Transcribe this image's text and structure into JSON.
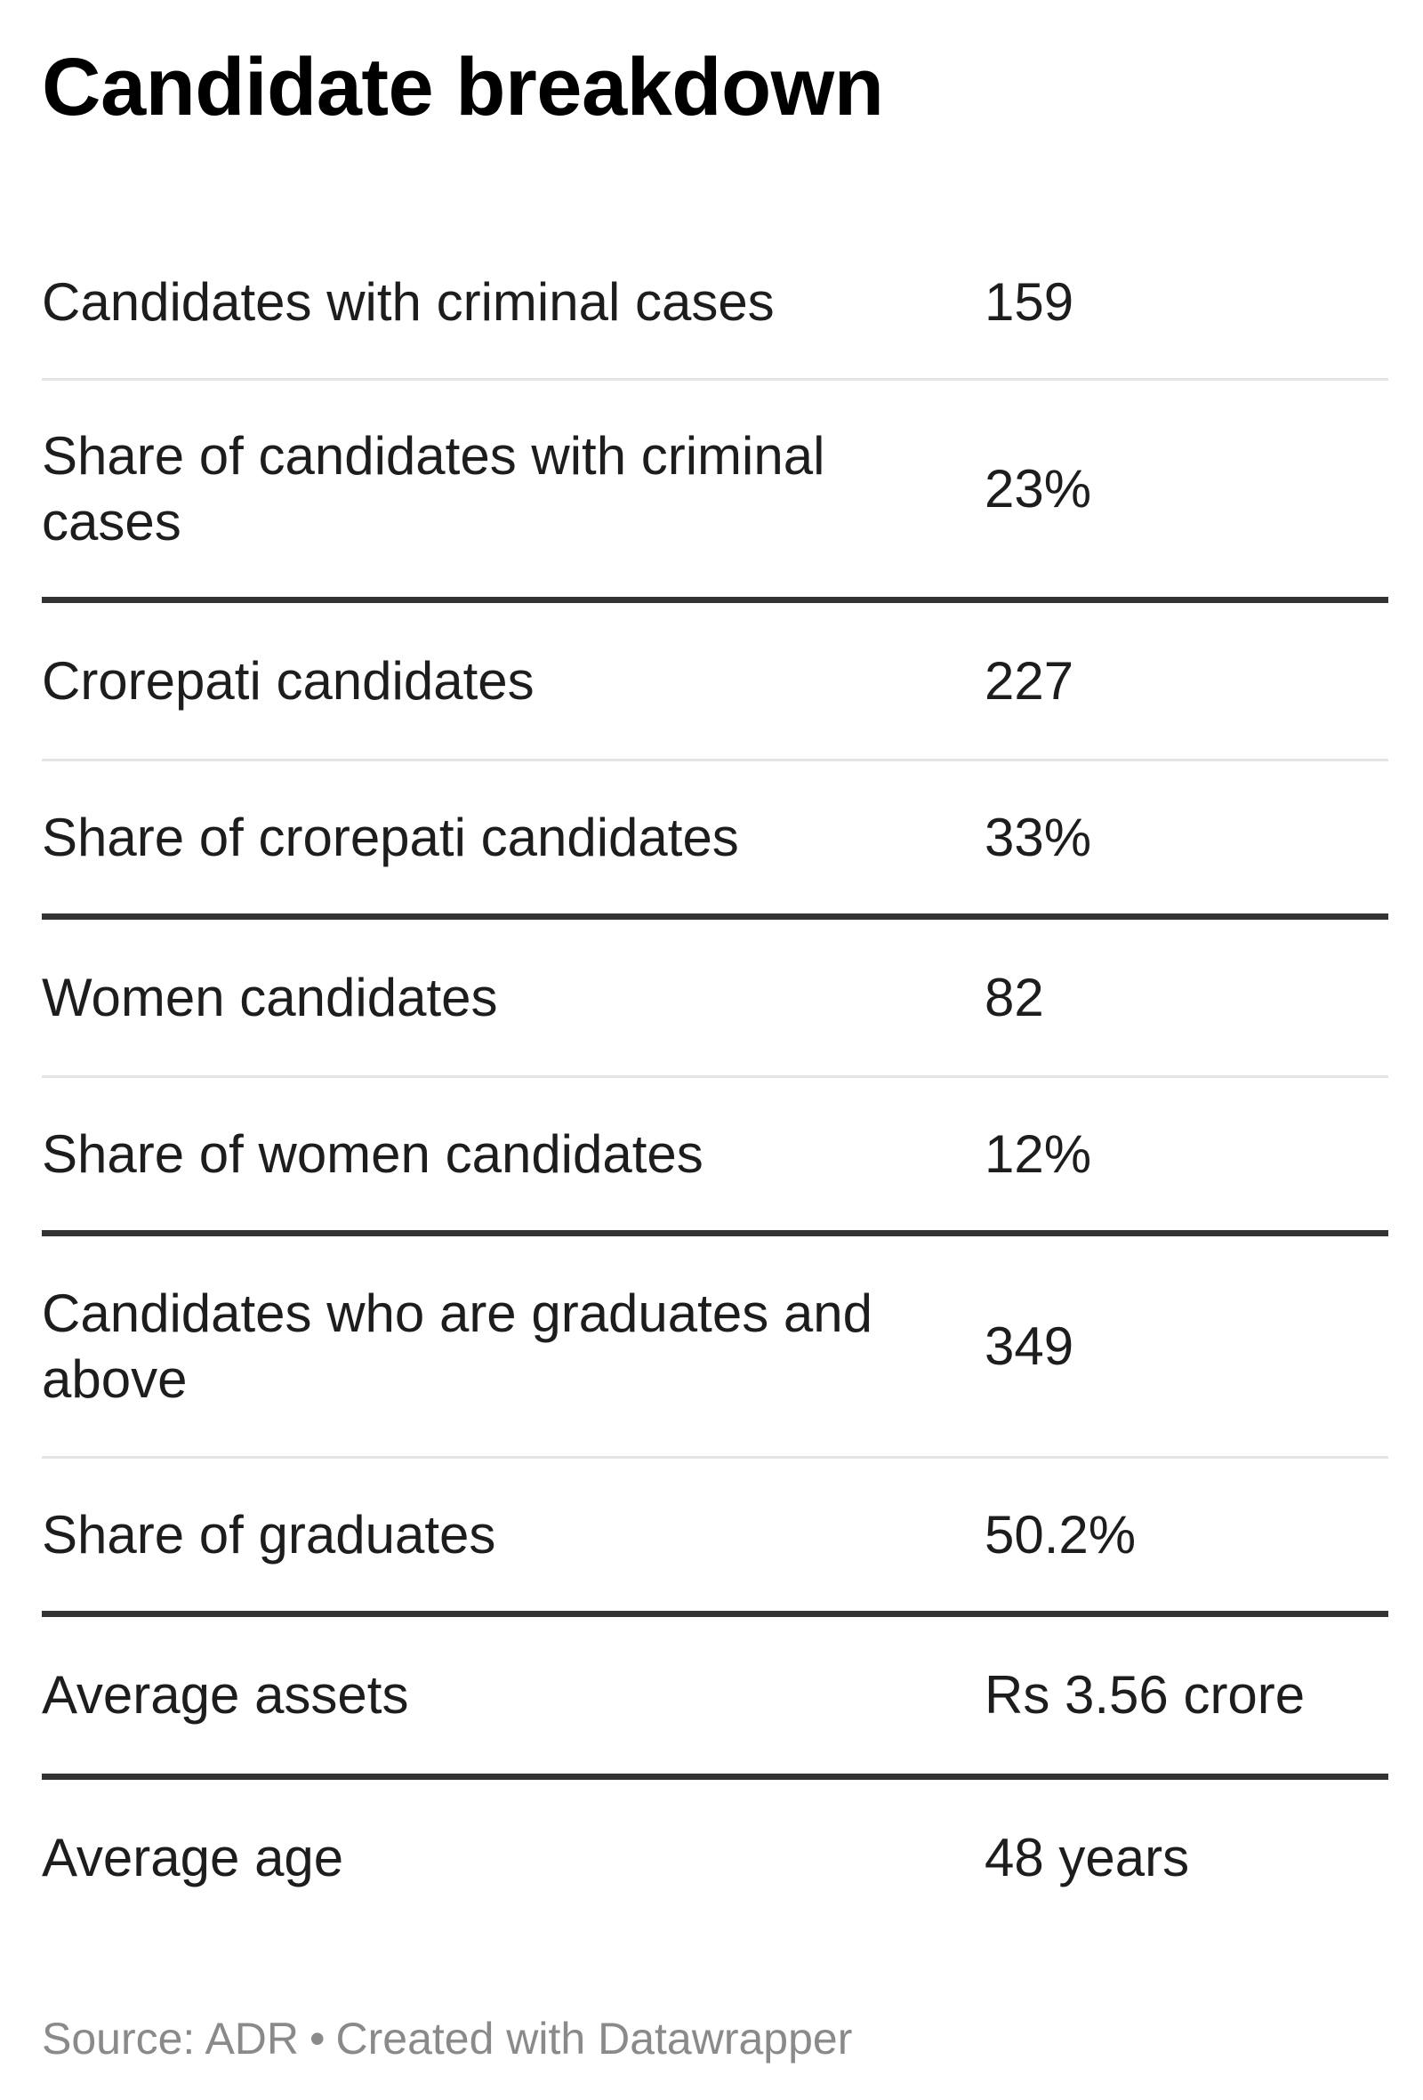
{
  "chart_data": {
    "type": "table",
    "title": "Candidate breakdown",
    "rows": [
      {
        "label": "Candidates with criminal cases",
        "value": "159"
      },
      {
        "label": "Share of candidates with criminal cases",
        "value": "23%"
      },
      {
        "label": "Crorepati candidates",
        "value": "227"
      },
      {
        "label": "Share of crorepati candidates",
        "value": "33%"
      },
      {
        "label": "Women candidates",
        "value": "82"
      },
      {
        "label": "Share of women candidates",
        "value": "12%"
      },
      {
        "label": "Candidates who are graduates and above",
        "value": "349"
      },
      {
        "label": "Share of graduates",
        "value": "50.2%"
      },
      {
        "label": "Average assets",
        "value": "Rs 3.56 crore"
      },
      {
        "label": "Average age",
        "value": "48 years"
      }
    ]
  },
  "footer": {
    "source": "Source: ADR",
    "separator": "•",
    "credit": "Created with Datawrapper"
  }
}
